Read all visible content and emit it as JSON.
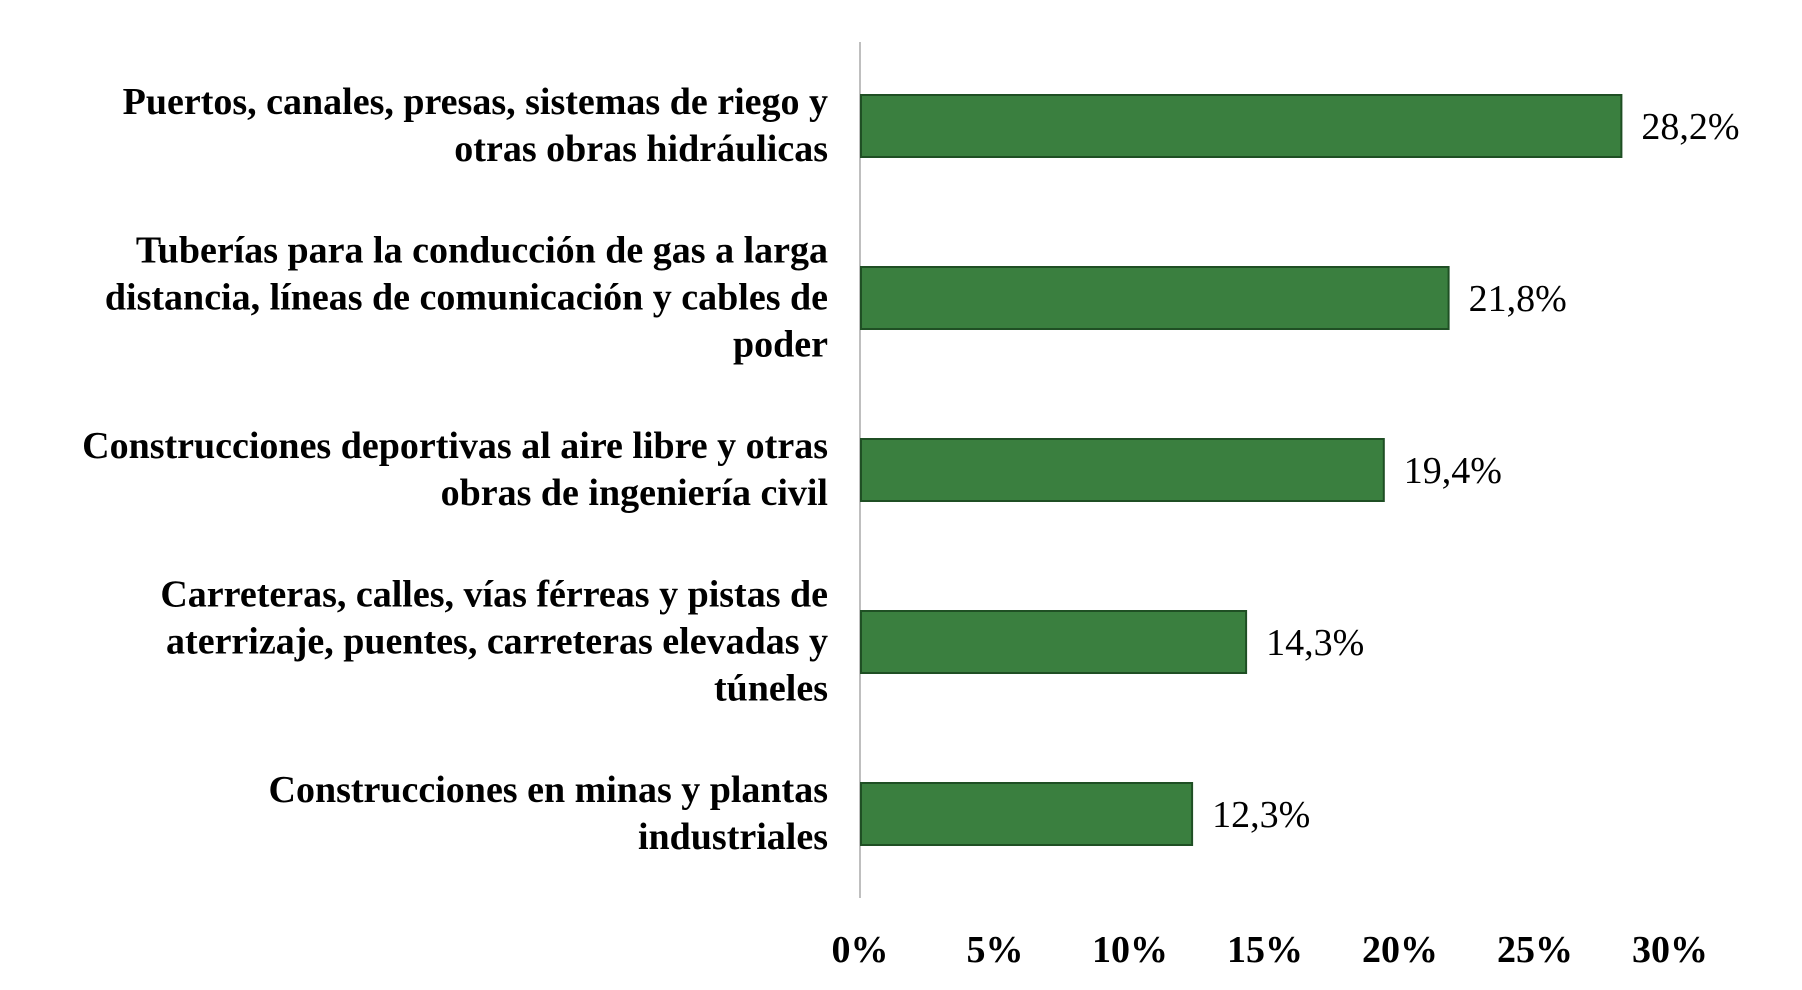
{
  "chart_data": {
    "type": "bar",
    "orientation": "horizontal",
    "categories": [
      "Puertos, canales, presas, sistemas de riego y\notras obras hidráulicas",
      "Tuberías para la conducción de gas a larga\ndistancia, líneas de comunicación y cables de\npoder",
      "Construcciones deportivas al aire libre y otras\nobras de ingeniería civil",
      "Carreteras, calles, vías férreas y pistas de\naterrizaje, puentes, carreteras elevadas y\ntúneles",
      "Construcciones  en minas y plantas\nindustriales"
    ],
    "values": [
      28.2,
      21.8,
      19.4,
      14.3,
      12.3
    ],
    "value_labels": [
      "28,2%",
      "21,8%",
      "19,4%",
      "14,3%",
      "12,3%"
    ],
    "x_ticks": [
      0,
      5,
      10,
      15,
      20,
      25,
      30
    ],
    "x_tick_labels": [
      "0%",
      "5%",
      "10%",
      "15%",
      "20%",
      "25%",
      "30%"
    ],
    "xlim": [
      0,
      30
    ],
    "title": "",
    "xlabel": "",
    "ylabel": "",
    "grid": false,
    "legend": "none",
    "bar_color": "#3a7f3f",
    "bar_edge_color": "#1f4f24",
    "axis_color": "#bfbfbf"
  }
}
